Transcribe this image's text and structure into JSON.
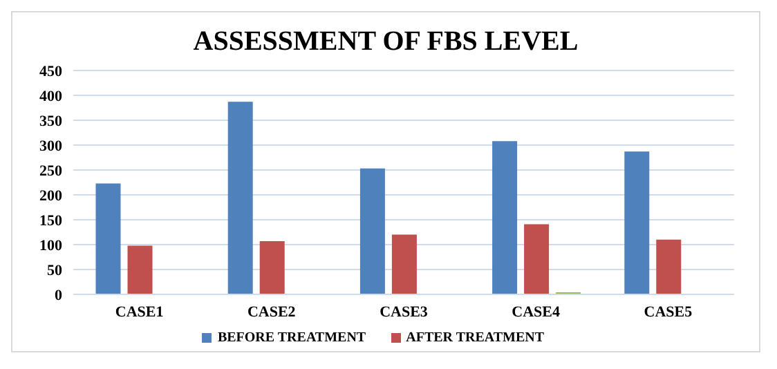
{
  "chart_data": {
    "type": "bar",
    "title": "ASSESSMENT OF FBS LEVEL",
    "categories": [
      "CASE1",
      "CASE2",
      "CASE3",
      "CASE4",
      "CASE5"
    ],
    "series": [
      {
        "name": "BEFORE TREATMENT",
        "color": "#4f81bd",
        "values": [
          223,
          387,
          253,
          308,
          287
        ]
      },
      {
        "name": "AFTER TREATMENT",
        "color": "#c0504d",
        "values": [
          98,
          107,
          120,
          141,
          110
        ]
      },
      {
        "color": "#9bbb59",
        "values": [
          null,
          null,
          null,
          4,
          null
        ]
      }
    ],
    "ylim": [
      0,
      450
    ],
    "yticks": [
      0,
      50,
      100,
      150,
      200,
      250,
      300,
      350,
      400,
      450
    ],
    "grid": "y",
    "legend": "bottom"
  }
}
